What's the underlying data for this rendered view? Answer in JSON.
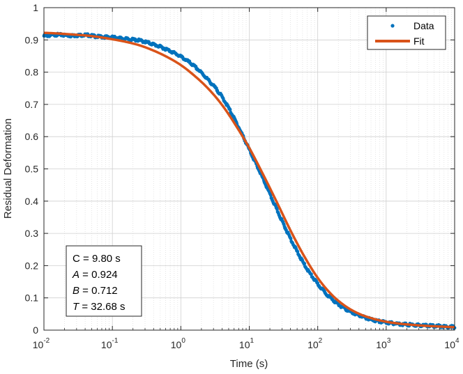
{
  "chart_data": {
    "type": "scatter",
    "xscale": "log",
    "xlim": [
      0.01,
      10000
    ],
    "ylim": [
      0,
      1
    ],
    "xlabel": "Time (s)",
    "ylabel": "Residual Deformation",
    "grid": true,
    "minor_grid_x": true,
    "x_ticks": [
      {
        "value": 0.01,
        "base": "10",
        "exp": "-2"
      },
      {
        "value": 0.1,
        "base": "10",
        "exp": "-1"
      },
      {
        "value": 1,
        "base": "10",
        "exp": "0"
      },
      {
        "value": 10,
        "base": "10",
        "exp": "1"
      },
      {
        "value": 100,
        "base": "10",
        "exp": "2"
      },
      {
        "value": 1000,
        "base": "10",
        "exp": "3"
      },
      {
        "value": 10000,
        "base": "10",
        "exp": "4"
      }
    ],
    "y_ticks": [
      {
        "value": 0,
        "label": "0"
      },
      {
        "value": 0.1,
        "label": "0.1"
      },
      {
        "value": 0.2,
        "label": "0.2"
      },
      {
        "value": 0.3,
        "label": "0.3"
      },
      {
        "value": 0.4,
        "label": "0.4"
      },
      {
        "value": 0.5,
        "label": "0.5"
      },
      {
        "value": 0.6,
        "label": "0.6"
      },
      {
        "value": 0.7,
        "label": "0.7"
      },
      {
        "value": 0.8,
        "label": "0.8"
      },
      {
        "value": 0.9,
        "label": "0.9"
      },
      {
        "value": 1,
        "label": "1"
      }
    ],
    "legend": {
      "location": "top-right",
      "entries": [
        "Data",
        "Fit"
      ]
    },
    "series": [
      {
        "name": "Data",
        "style": "markers",
        "color": "#0072BD",
        "x": [
          0.01,
          0.0158,
          0.0251,
          0.0398,
          0.0631,
          0.1,
          0.158,
          0.251,
          0.398,
          0.631,
          1,
          1.58,
          2.51,
          3.98,
          6.31,
          10,
          15.8,
          25.1,
          39.8,
          63.1,
          100,
          158,
          251,
          398,
          631,
          1000,
          1585,
          2512,
          3981,
          6310,
          10000
        ],
        "y": [
          0.912,
          0.916,
          0.913,
          0.915,
          0.91,
          0.908,
          0.903,
          0.898,
          0.886,
          0.87,
          0.848,
          0.818,
          0.776,
          0.724,
          0.648,
          0.56,
          0.47,
          0.375,
          0.285,
          0.205,
          0.143,
          0.098,
          0.066,
          0.046,
          0.032,
          0.024,
          0.019,
          0.016,
          0.014,
          0.012,
          0.01
        ]
      },
      {
        "name": "Fit",
        "style": "line",
        "color": "#D95319",
        "x": [
          0.01,
          0.0158,
          0.0251,
          0.0398,
          0.0631,
          0.1,
          0.158,
          0.251,
          0.398,
          0.631,
          1,
          1.58,
          2.51,
          3.98,
          6.31,
          10,
          15.8,
          25.1,
          39.8,
          63.1,
          100,
          158,
          251,
          398,
          631,
          1000,
          1585,
          2512,
          3981,
          6310,
          10000
        ],
        "y": [
          0.922,
          0.92,
          0.917,
          0.914,
          0.909,
          0.902,
          0.894,
          0.883,
          0.867,
          0.847,
          0.822,
          0.789,
          0.749,
          0.699,
          0.636,
          0.565,
          0.484,
          0.398,
          0.31,
          0.23,
          0.162,
          0.111,
          0.075,
          0.051,
          0.036,
          0.026,
          0.02,
          0.016,
          0.013,
          0.011,
          0.009
        ]
      }
    ],
    "annotation": {
      "lines": [
        {
          "label": "C",
          "italic": false,
          "text": " = 9.80 s"
        },
        {
          "label": "A",
          "italic": true,
          "text": " = 0.924"
        },
        {
          "label": "B",
          "italic": true,
          "text": " = 0.712"
        },
        {
          "label": "T",
          "italic": true,
          "text": " = 32.68 s"
        }
      ]
    }
  }
}
